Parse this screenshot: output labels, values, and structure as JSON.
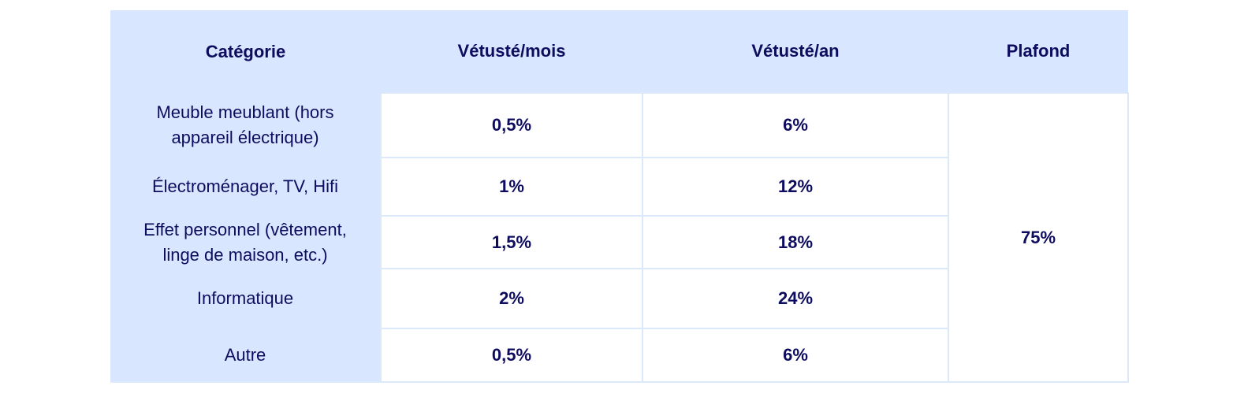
{
  "table": {
    "headers": [
      "Catégorie",
      "Vétusté/mois",
      "Vétusté/an",
      "Plafond"
    ],
    "rows": [
      [
        "Meuble meublant (hors appareil électrique)",
        "0,5%",
        "6%"
      ],
      [
        "Électroménager, TV, Hifi",
        "1%",
        "12%"
      ],
      [
        "Effet personnel (vêtement, linge de maison, etc.)",
        "1,5%",
        "18%"
      ],
      [
        "Informatique",
        "2%",
        "24%"
      ],
      [
        "Autre",
        "0,5%",
        "6%"
      ]
    ],
    "plafond": "75%"
  }
}
